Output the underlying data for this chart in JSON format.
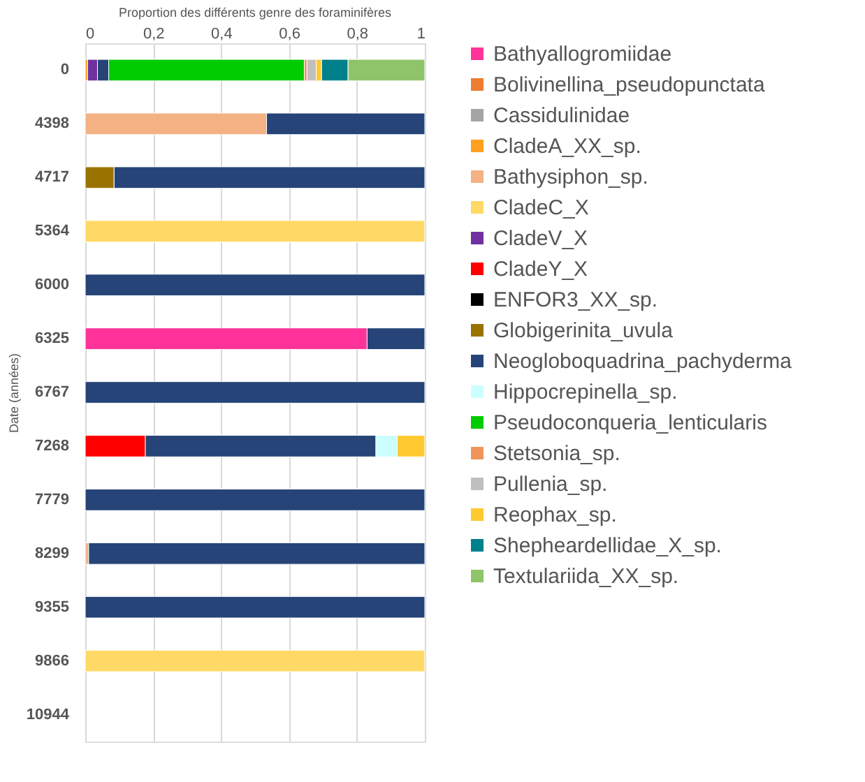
{
  "chart_data": {
    "type": "bar",
    "orientation": "horizontal",
    "stacked": true,
    "title": "Proportion des différents genre des foraminifères",
    "ylabel": "Date (années)",
    "categories": [
      "0",
      "4398",
      "4717",
      "5364",
      "6000",
      "6325",
      "6767",
      "7268",
      "7779",
      "8299",
      "9355",
      "9866",
      "10944"
    ],
    "xlim": [
      0,
      1
    ],
    "xticks": [
      0,
      {
        "value": 0.2,
        "label": "0,2"
      },
      {
        "value": 0.4,
        "label": "0,4"
      },
      {
        "value": 0.6,
        "label": "0,6"
      },
      {
        "value": 0.8,
        "label": "0,8"
      },
      1
    ],
    "grid": "x",
    "legend": "right",
    "series": [
      {
        "name": "Bathyallogromiidae",
        "color": "#ff3399",
        "values": [
          null,
          null,
          null,
          null,
          null,
          0.83,
          null,
          null,
          null,
          null,
          null,
          null,
          null
        ]
      },
      {
        "name": "Bolivinellina_pseudopunctata",
        "color": "#ed7d31",
        "values": [
          null,
          null,
          null,
          null,
          null,
          null,
          null,
          null,
          null,
          null,
          null,
          null,
          null
        ]
      },
      {
        "name": "Cassidulinidae",
        "color": "#a5a5a5",
        "values": [
          null,
          null,
          null,
          null,
          null,
          null,
          null,
          null,
          null,
          null,
          null,
          null,
          null
        ]
      },
      {
        "name": "CladeA_XX_sp.",
        "color": "#ffa020",
        "values": [
          0.007,
          null,
          null,
          null,
          null,
          null,
          null,
          null,
          null,
          null,
          null,
          null,
          null
        ]
      },
      {
        "name": "Bathysiphon_sp.",
        "color": "#f4b183",
        "values": [
          null,
          0.534,
          null,
          null,
          null,
          null,
          null,
          null,
          null,
          0.01,
          null,
          null,
          null
        ]
      },
      {
        "name": "CladeC_X",
        "color": "#ffd966",
        "values": [
          null,
          null,
          null,
          1,
          null,
          null,
          null,
          null,
          null,
          null,
          null,
          1,
          null
        ]
      },
      {
        "name": "CladeV_X",
        "color": "#7030a0",
        "values": [
          0.029,
          null,
          null,
          null,
          null,
          null,
          null,
          null,
          null,
          null,
          null,
          null,
          null
        ]
      },
      {
        "name": "CladeY_X",
        "color": "#ff0000",
        "values": [
          null,
          null,
          null,
          null,
          null,
          null,
          null,
          0.177,
          null,
          null,
          null,
          null,
          null
        ]
      },
      {
        "name": "ENFOR3_XX_sp.",
        "color": "#000000",
        "values": [
          null,
          null,
          null,
          null,
          null,
          null,
          null,
          null,
          null,
          null,
          null,
          null,
          null
        ]
      },
      {
        "name": "Globigerinita_uvula",
        "color": "#997300",
        "values": [
          null,
          null,
          0.085,
          null,
          null,
          null,
          null,
          null,
          null,
          null,
          null,
          null,
          null
        ]
      },
      {
        "name": "Neogloboquadrina_pachyderma",
        "color": "#264478",
        "values": [
          0.033,
          0.466,
          0.915,
          null,
          1,
          0.17,
          1,
          0.679,
          1,
          0.99,
          1,
          null,
          null
        ]
      },
      {
        "name": "Hippocrepinella_sp.",
        "color": "#ccffff",
        "values": [
          null,
          null,
          null,
          null,
          null,
          null,
          null,
          0.063,
          null,
          null,
          null,
          null,
          null
        ]
      },
      {
        "name": "Pseudoconqueria_lenticularis",
        "color": "#00cc00",
        "values": [
          0.576,
          null,
          null,
          null,
          null,
          null,
          null,
          null,
          null,
          null,
          null,
          null,
          null
        ]
      },
      {
        "name": "Stetsonia_sp.",
        "color": "#f0955a",
        "values": [
          0.008,
          null,
          null,
          null,
          null,
          null,
          null,
          null,
          null,
          null,
          null,
          null,
          null
        ]
      },
      {
        "name": "Pullenia_sp.",
        "color": "#bfbfbf",
        "values": [
          0.027,
          null,
          null,
          null,
          null,
          null,
          null,
          null,
          null,
          null,
          null,
          null,
          null
        ]
      },
      {
        "name": "Reophax_sp.",
        "color": "#ffc931",
        "values": [
          0.016,
          null,
          null,
          null,
          null,
          null,
          null,
          0.081,
          null,
          null,
          null,
          null,
          null
        ]
      },
      {
        "name": "Shepheardellidae_X_sp.",
        "color": "#00808a",
        "values": [
          0.078,
          null,
          null,
          null,
          null,
          null,
          null,
          null,
          null,
          null,
          null,
          null,
          null
        ]
      },
      {
        "name": "Textulariida_XX_sp.",
        "color": "#8fc46a",
        "values": [
          0.226,
          null,
          null,
          null,
          null,
          null,
          null,
          null,
          null,
          null,
          null,
          null,
          null
        ]
      }
    ]
  }
}
